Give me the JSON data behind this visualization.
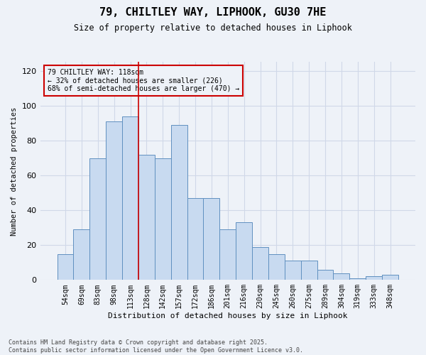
{
  "title_line1": "79, CHILTLEY WAY, LIPHOOK, GU30 7HE",
  "title_line2": "Size of property relative to detached houses in Liphook",
  "xlabel": "Distribution of detached houses by size in Liphook",
  "ylabel": "Number of detached properties",
  "categories": [
    "54sqm",
    "69sqm",
    "83sqm",
    "98sqm",
    "113sqm",
    "128sqm",
    "142sqm",
    "157sqm",
    "172sqm",
    "186sqm",
    "201sqm",
    "216sqm",
    "230sqm",
    "245sqm",
    "260sqm",
    "275sqm",
    "289sqm",
    "304sqm",
    "319sqm",
    "333sqm",
    "348sqm"
  ],
  "values": [
    15,
    29,
    70,
    91,
    94,
    72,
    70,
    89,
    47,
    47,
    29,
    33,
    19,
    15,
    11,
    11,
    6,
    4,
    1,
    2,
    3
  ],
  "bar_color": "#c8daf0",
  "bar_edge_color": "#6090c0",
  "property_line_x": 4.5,
  "property_line_color": "#cc0000",
  "annotation_line1": "79 CHILTLEY WAY: 118sqm",
  "annotation_line2": "← 32% of detached houses are smaller (226)",
  "annotation_line3": "68% of semi-detached houses are larger (470) →",
  "annotation_box_color": "#cc0000",
  "ylim": [
    0,
    125
  ],
  "yticks": [
    0,
    20,
    40,
    60,
    80,
    100,
    120
  ],
  "grid_color": "#d0d8e8",
  "background_color": "#eef2f8",
  "footer_text": "Contains HM Land Registry data © Crown copyright and database right 2025.\nContains public sector information licensed under the Open Government Licence v3.0."
}
